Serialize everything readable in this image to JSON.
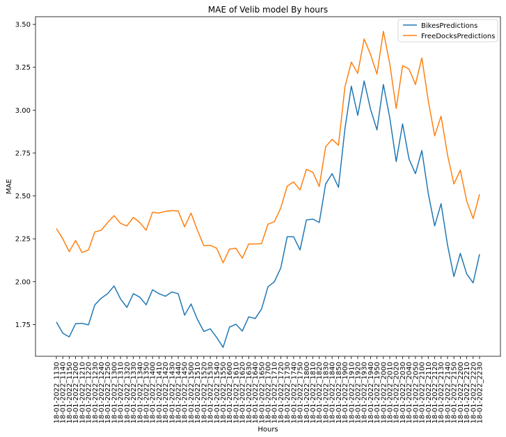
{
  "chart_data": {
    "type": "line",
    "title": "MAE of Velib model By hours",
    "xlabel": "Hours",
    "ylabel": "MAE",
    "ylim": [
      1.565,
      3.545
    ],
    "yticks": [
      1.75,
      2.0,
      2.25,
      2.5,
      2.75,
      3.0,
      3.25,
      3.5
    ],
    "ytick_labels": [
      "1.75",
      "2.00",
      "2.25",
      "2.50",
      "2.75",
      "3.00",
      "3.25",
      "3.50"
    ],
    "grid": false,
    "legend_position": "top-right",
    "categories": [
      "18-01-2022_1130",
      "18-01-2022_1140",
      "18-01-2022_1150",
      "18-01-2022_1200",
      "18-01-2022_1210",
      "18-01-2022_1220",
      "18-01-2022_1230",
      "18-01-2022_1240",
      "18-01-2022_1250",
      "18-01-2022_1300",
      "18-01-2022_1310",
      "18-01-2022_1320",
      "18-01-2022_1330",
      "18-01-2022_1340",
      "18-01-2022_1350",
      "18-01-2022_1400",
      "18-01-2022_1410",
      "18-01-2022_1420",
      "18-01-2022_1430",
      "18-01-2022_1440",
      "18-01-2022_1450",
      "18-01-2022_1500",
      "18-01-2022_1510",
      "18-01-2022_1520",
      "18-01-2022_1530",
      "18-01-2022_1540",
      "18-01-2022_1550",
      "18-01-2022_1600",
      "18-01-2022_1610",
      "18-01-2022_1620",
      "18-01-2022_1630",
      "18-01-2022_1640",
      "18-01-2022_1650",
      "18-01-2022_1700",
      "18-01-2022_1710",
      "18-01-2022_1720",
      "18-01-2022_1730",
      "18-01-2022_1740",
      "18-01-2022_1750",
      "18-01-2022_1800",
      "18-01-2022_1810",
      "18-01-2022_1820",
      "18-01-2022_1830",
      "18-01-2022_1840",
      "18-01-2022_1850",
      "18-01-2022_1900",
      "18-01-2022_1910",
      "18-01-2022_1920",
      "18-01-2022_1930",
      "18-01-2022_1940",
      "18-01-2022_1950",
      "18-01-2022_2000",
      "18-01-2022_2010",
      "18-01-2022_2020",
      "18-01-2022_2030",
      "18-01-2022_2040",
      "18-01-2022_2050",
      "18-01-2022_2100",
      "18-01-2022_2110",
      "18-01-2022_2120",
      "18-01-2022_2130",
      "18-01-2022_2140",
      "18-01-2022_2150",
      "18-01-2022_2200",
      "18-01-2022_2210",
      "18-01-2022_2220",
      "18-01-2022_2230"
    ],
    "series": [
      {
        "name": "BikesPredictions",
        "color": "#1f77b4",
        "values": [
          1.765,
          1.7,
          1.678,
          1.755,
          1.757,
          1.748,
          1.865,
          1.904,
          1.93,
          1.975,
          1.9,
          1.85,
          1.93,
          1.91,
          1.865,
          1.953,
          1.93,
          1.915,
          1.94,
          1.93,
          1.805,
          1.87,
          1.78,
          1.71,
          1.725,
          1.675,
          1.617,
          1.735,
          1.752,
          1.712,
          1.795,
          1.785,
          1.84,
          1.97,
          2.0,
          2.08,
          2.262,
          2.262,
          2.185,
          2.36,
          2.365,
          2.345,
          2.57,
          2.63,
          2.55,
          2.89,
          3.14,
          2.97,
          3.17,
          3.005,
          2.885,
          3.15,
          2.955,
          2.7,
          2.92,
          2.715,
          2.63,
          2.765,
          2.515,
          2.325,
          2.455,
          2.215,
          2.03,
          2.165,
          2.045,
          1.993,
          2.16
        ]
      },
      {
        "name": "FreeDocksPredictions",
        "color": "#ff7f0e",
        "values": [
          2.31,
          2.25,
          2.175,
          2.24,
          2.17,
          2.185,
          2.29,
          2.3,
          2.345,
          2.385,
          2.34,
          2.325,
          2.375,
          2.345,
          2.3,
          2.405,
          2.4,
          2.41,
          2.415,
          2.412,
          2.32,
          2.4,
          2.3,
          2.21,
          2.212,
          2.195,
          2.11,
          2.19,
          2.195,
          2.137,
          2.22,
          2.22,
          2.222,
          2.335,
          2.35,
          2.43,
          2.557,
          2.582,
          2.535,
          2.655,
          2.638,
          2.555,
          2.787,
          2.83,
          2.795,
          3.135,
          3.28,
          3.215,
          3.415,
          3.325,
          3.21,
          3.46,
          3.27,
          3.01,
          3.26,
          3.24,
          3.15,
          3.305,
          3.055,
          2.85,
          2.965,
          2.74,
          2.57,
          2.65,
          2.47,
          2.368,
          2.51
        ]
      }
    ]
  }
}
